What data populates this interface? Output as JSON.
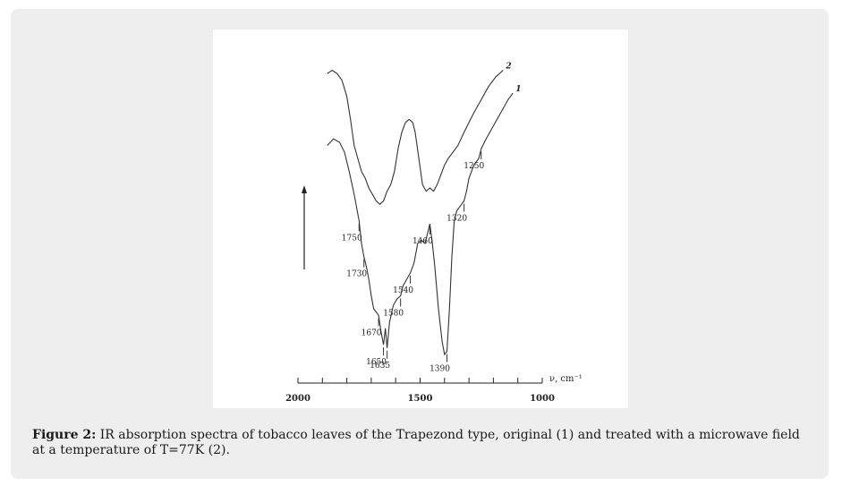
{
  "caption": {
    "label": "Figure 2:",
    "text": "IR absorption spectra of tobacco leaves of the Trapezond type, original (1) and treated with a microwave field at a temperature of T=77K (2)."
  },
  "chart_data": {
    "type": "line",
    "title": "",
    "xlabel": "ν, cm⁻¹",
    "ylabel": "",
    "xlim": [
      2000,
      1000
    ],
    "x_tick_labels": [
      "2000",
      "1500",
      "1000"
    ],
    "y_axis_arrow": true,
    "grid": false,
    "series": [
      {
        "name": "1",
        "points": [
          [
            1880,
            0.7
          ],
          [
            1855,
            0.72
          ],
          [
            1830,
            0.71
          ],
          [
            1810,
            0.68
          ],
          [
            1790,
            0.62
          ],
          [
            1770,
            0.55
          ],
          [
            1750,
            0.47
          ],
          [
            1740,
            0.4
          ],
          [
            1730,
            0.36
          ],
          [
            1720,
            0.33
          ],
          [
            1710,
            0.29
          ],
          [
            1700,
            0.24
          ],
          [
            1690,
            0.2
          ],
          [
            1680,
            0.19
          ],
          [
            1670,
            0.18
          ],
          [
            1660,
            0.13
          ],
          [
            1650,
            0.09
          ],
          [
            1642,
            0.14
          ],
          [
            1635,
            0.08
          ],
          [
            1625,
            0.16
          ],
          [
            1610,
            0.21
          ],
          [
            1595,
            0.23
          ],
          [
            1580,
            0.24
          ],
          [
            1570,
            0.27
          ],
          [
            1555,
            0.29
          ],
          [
            1540,
            0.31
          ],
          [
            1525,
            0.34
          ],
          [
            1510,
            0.4
          ],
          [
            1495,
            0.41
          ],
          [
            1480,
            0.4
          ],
          [
            1470,
            0.43
          ],
          [
            1460,
            0.46
          ],
          [
            1450,
            0.4
          ],
          [
            1440,
            0.33
          ],
          [
            1425,
            0.2
          ],
          [
            1410,
            0.1
          ],
          [
            1400,
            0.06
          ],
          [
            1390,
            0.07
          ],
          [
            1380,
            0.2
          ],
          [
            1370,
            0.36
          ],
          [
            1360,
            0.47
          ],
          [
            1350,
            0.5
          ],
          [
            1340,
            0.51
          ],
          [
            1330,
            0.52
          ],
          [
            1320,
            0.53
          ],
          [
            1310,
            0.56
          ],
          [
            1300,
            0.6
          ],
          [
            1280,
            0.64
          ],
          [
            1260,
            0.66
          ],
          [
            1250,
            0.69
          ],
          [
            1230,
            0.72
          ],
          [
            1200,
            0.76
          ],
          [
            1170,
            0.8
          ],
          [
            1140,
            0.84
          ],
          [
            1120,
            0.86
          ]
        ]
      },
      {
        "name": "2",
        "points": [
          [
            1880,
            0.92
          ],
          [
            1860,
            0.93
          ],
          [
            1840,
            0.92
          ],
          [
            1820,
            0.9
          ],
          [
            1800,
            0.85
          ],
          [
            1785,
            0.78
          ],
          [
            1770,
            0.7
          ],
          [
            1755,
            0.66
          ],
          [
            1740,
            0.62
          ],
          [
            1725,
            0.6
          ],
          [
            1710,
            0.57
          ],
          [
            1695,
            0.55
          ],
          [
            1680,
            0.53
          ],
          [
            1665,
            0.52
          ],
          [
            1650,
            0.53
          ],
          [
            1635,
            0.56
          ],
          [
            1620,
            0.58
          ],
          [
            1605,
            0.62
          ],
          [
            1590,
            0.69
          ],
          [
            1575,
            0.74
          ],
          [
            1560,
            0.77
          ],
          [
            1545,
            0.78
          ],
          [
            1530,
            0.77
          ],
          [
            1520,
            0.74
          ],
          [
            1505,
            0.66
          ],
          [
            1490,
            0.58
          ],
          [
            1475,
            0.56
          ],
          [
            1460,
            0.57
          ],
          [
            1445,
            0.56
          ],
          [
            1430,
            0.58
          ],
          [
            1415,
            0.61
          ],
          [
            1400,
            0.64
          ],
          [
            1385,
            0.66
          ],
          [
            1365,
            0.68
          ],
          [
            1345,
            0.7
          ],
          [
            1320,
            0.74
          ],
          [
            1300,
            0.77
          ],
          [
            1280,
            0.8
          ],
          [
            1250,
            0.84
          ],
          [
            1220,
            0.88
          ],
          [
            1190,
            0.91
          ],
          [
            1160,
            0.93
          ]
        ]
      }
    ],
    "annotations": [
      {
        "label": "1750",
        "x": 1750
      },
      {
        "label": "1730",
        "x": 1730
      },
      {
        "label": "1670",
        "x": 1670
      },
      {
        "label": "1650",
        "x": 1650
      },
      {
        "label": "1635",
        "x": 1635
      },
      {
        "label": "1580",
        "x": 1580
      },
      {
        "label": "1540",
        "x": 1540
      },
      {
        "label": "1460",
        "x": 1460
      },
      {
        "label": "1390",
        "x": 1390
      },
      {
        "label": "1320",
        "x": 1320
      },
      {
        "label": "1250",
        "x": 1250
      }
    ]
  }
}
